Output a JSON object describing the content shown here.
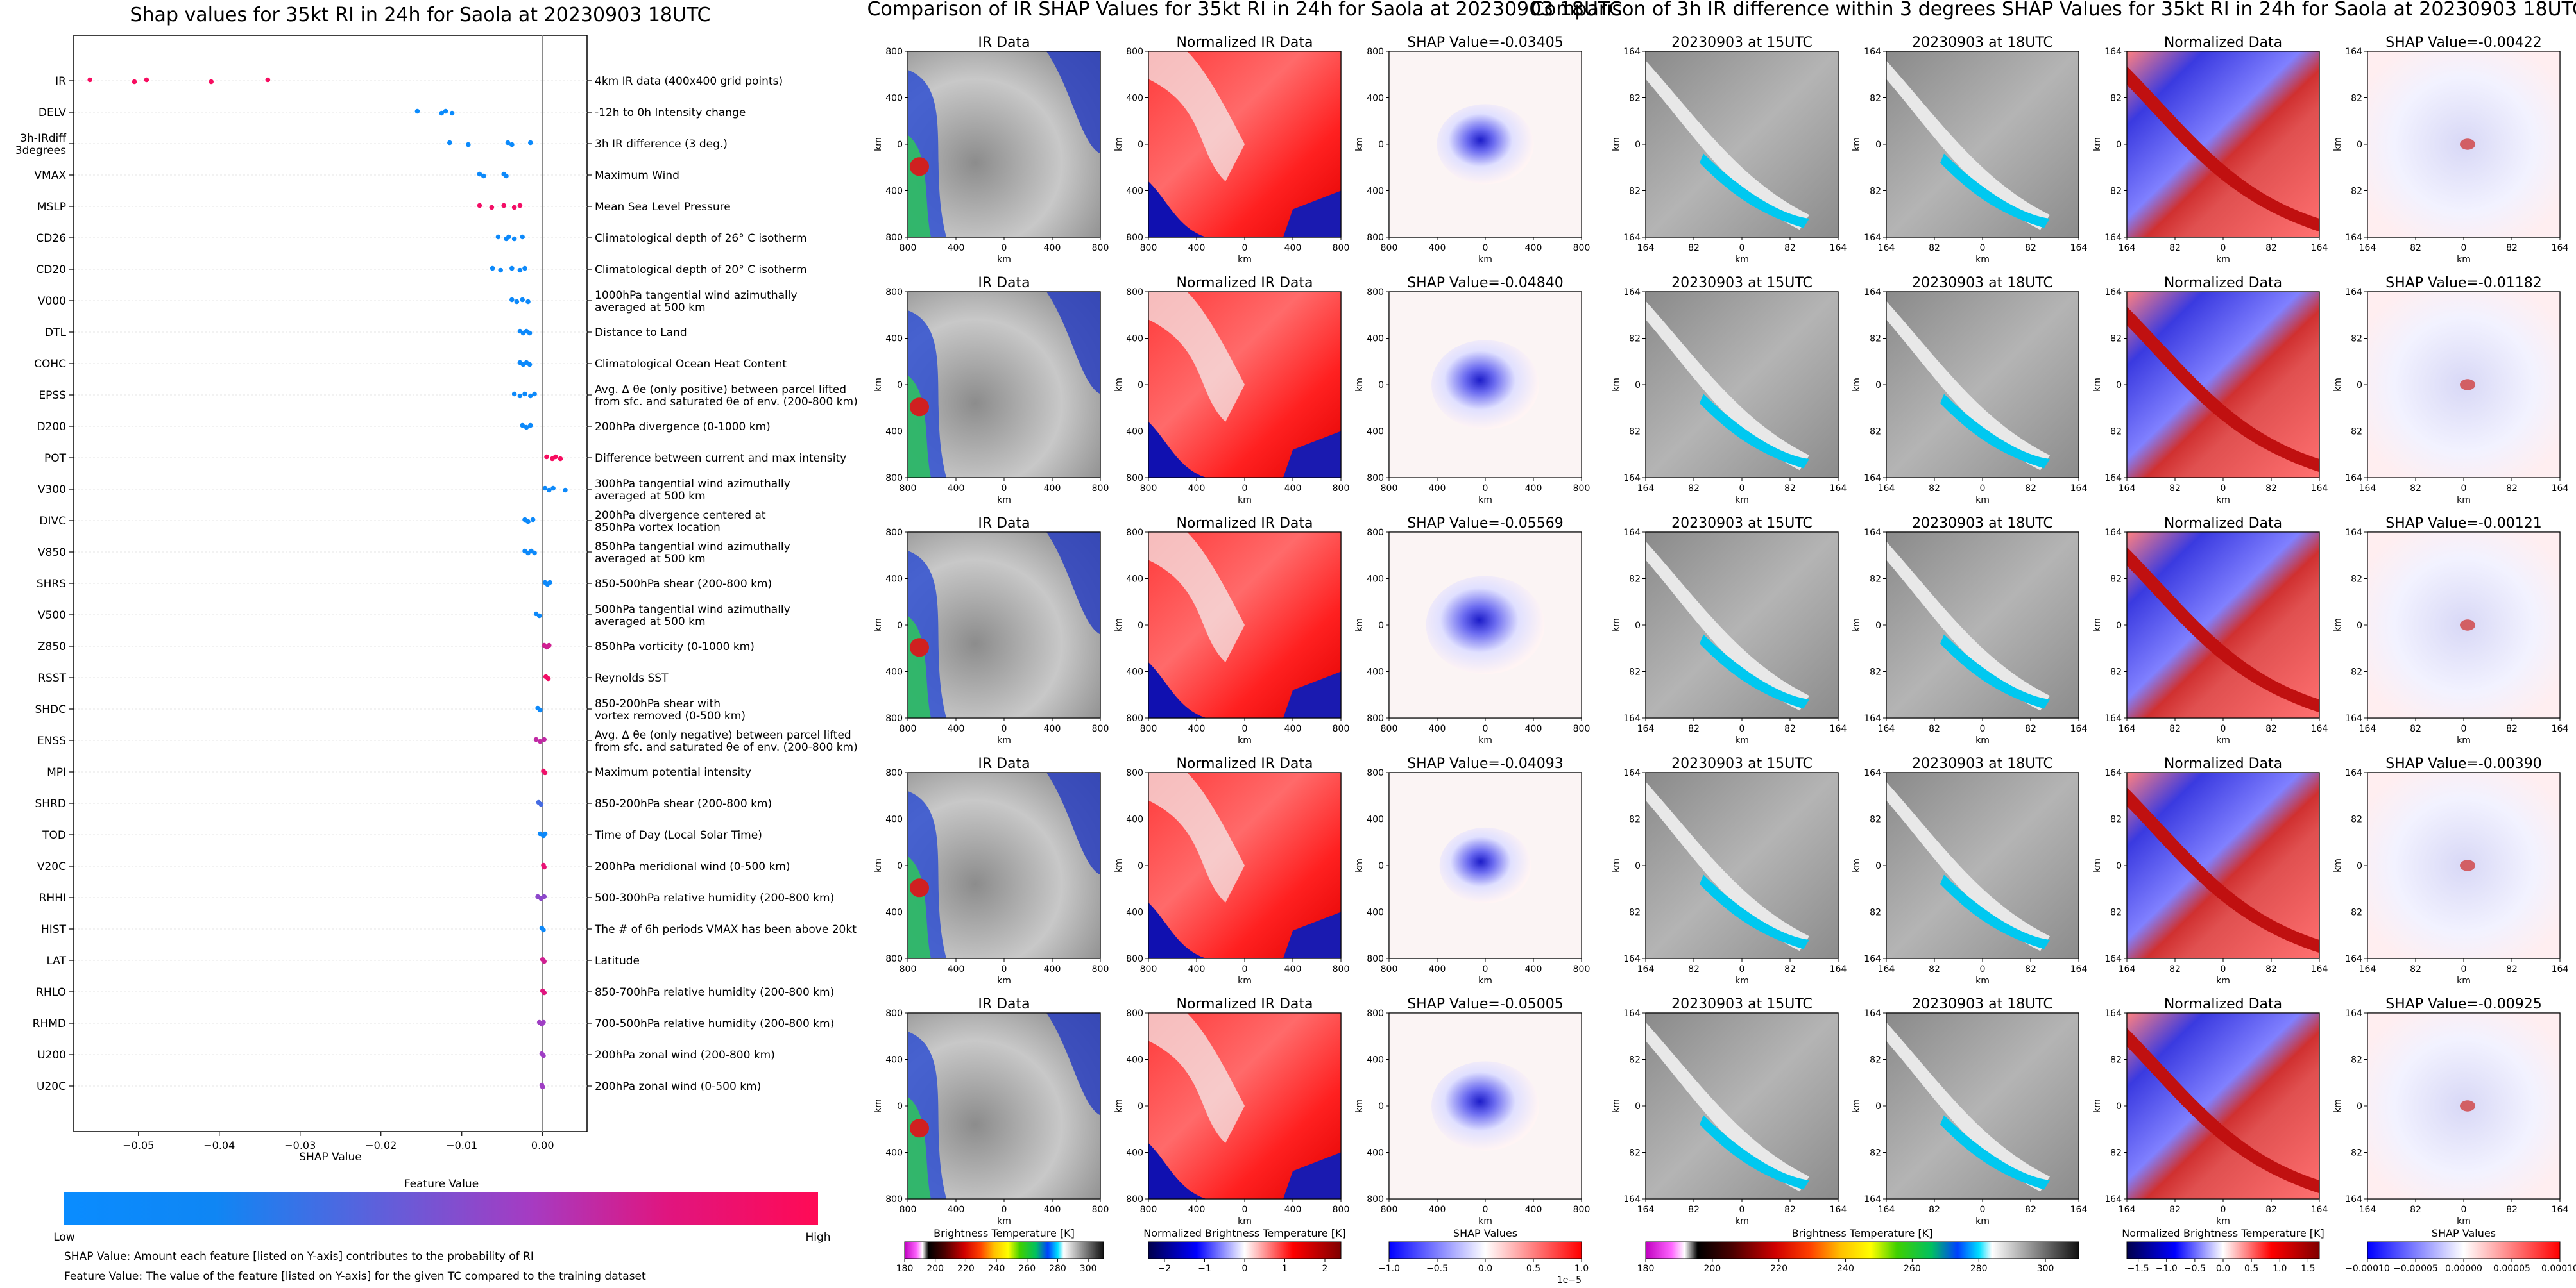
{
  "left_panel": {
    "title": "Shap values for 35kt RI in 24h for Saola at 20230903 18UTC",
    "xlabel": "SHAP Value",
    "colorbar_title": "Feature Value",
    "colorbar_low": "Low",
    "colorbar_high": "High",
    "note1": "SHAP Value: Amount each feature [listed on Y-axis] contributes to the probability of RI",
    "note2": "Feature Value: The value of the feature [listed on Y-axis] for the given TC compared to the training dataset",
    "colors": {
      "low": "#1e88e5",
      "high": "#ff0d57"
    }
  },
  "chart_data": [
    {
      "type": "scatter",
      "title": "Shap values for 35kt RI in 24h for Saola at 20230903 18UTC",
      "xlabel": "SHAP Value",
      "xlim": [
        -0.058,
        0.0055
      ],
      "xticks": [
        "−0.05",
        "−0.04",
        "−0.03",
        "−0.02",
        "−0.01",
        "0.00"
      ],
      "xtick_values": [
        -0.05,
        -0.04,
        -0.03,
        -0.02,
        -0.01,
        0.0
      ],
      "features": [
        {
          "name": "IR",
          "desc": "4km IR data (400x400 grid points)",
          "values": [
            -0.056,
            -0.0505,
            -0.049,
            -0.041,
            -0.034
          ],
          "fv": 0.95
        },
        {
          "name": "DELV",
          "desc": "-12h to 0h Intensity change",
          "values": [
            -0.0155,
            -0.0125,
            -0.012,
            -0.0112
          ],
          "fv": 0.05
        },
        {
          "name": "3h-IRdiff\n3degrees",
          "desc": "3h IR difference (3 deg.)",
          "values": [
            -0.0115,
            -0.0092,
            -0.0043,
            -0.0038,
            -0.0015
          ],
          "fv": 0.08
        },
        {
          "name": "VMAX",
          "desc": "Maximum Wind",
          "values": [
            -0.0078,
            -0.0073,
            -0.0048,
            -0.0045
          ],
          "fv": 0.1
        },
        {
          "name": "MSLP",
          "desc": "Mean Sea Level Pressure",
          "values": [
            -0.0078,
            -0.0063,
            -0.0048,
            -0.0035,
            -0.0028
          ],
          "fv": 0.92
        },
        {
          "name": "CD26",
          "desc": "Climatological depth of 26° C isotherm",
          "values": [
            -0.0055,
            -0.0045,
            -0.0042,
            -0.0035,
            -0.0025
          ],
          "fv": 0.1
        },
        {
          "name": "CD20",
          "desc": "Climatological depth of 20° C isotherm",
          "values": [
            -0.0062,
            -0.0052,
            -0.0038,
            -0.0028,
            -0.0022
          ],
          "fv": 0.1
        },
        {
          "name": "V000",
          "desc": "1000hPa tangential wind azimuthally\naveraged at 500 km",
          "values": [
            -0.0038,
            -0.0032,
            -0.0025,
            -0.0018
          ],
          "fv": 0.1
        },
        {
          "name": "DTL",
          "desc": "Distance to Land",
          "values": [
            -0.0028,
            -0.0024,
            -0.002,
            -0.0016
          ],
          "fv": 0.1
        },
        {
          "name": "COHC",
          "desc": "Climatological Ocean Heat Content",
          "values": [
            -0.0028,
            -0.0024,
            -0.002,
            -0.0016
          ],
          "fv": 0.1
        },
        {
          "name": "EPSS",
          "desc": "Avg. Δ θe (only positive) between parcel lifted\nfrom sfc. and saturated θe of env. (200-800 km)",
          "values": [
            -0.0035,
            -0.0028,
            -0.0022,
            -0.0015,
            -0.001
          ],
          "fv": 0.1
        },
        {
          "name": "D200",
          "desc": "200hPa divergence (0-1000 km)",
          "values": [
            -0.0025,
            -0.002,
            -0.0015
          ],
          "fv": 0.1
        },
        {
          "name": "POT",
          "desc": "Difference between current and max intensity",
          "values": [
            0.0005,
            0.0012,
            0.0016,
            0.0022
          ],
          "fv": 0.95
        },
        {
          "name": "V300",
          "desc": "300hPa tangential wind azimuthally\naveraged at 500 km",
          "values": [
            0.0003,
            0.0008,
            0.0013,
            0.0028
          ],
          "fv": 0.1
        },
        {
          "name": "DIVC",
          "desc": "200hPa divergence centered at\n850hPa vortex location",
          "values": [
            -0.0022,
            -0.0018,
            -0.0012
          ],
          "fv": 0.1
        },
        {
          "name": "V850",
          "desc": "850hPa tangential wind azimuthally\naveraged at 500 km",
          "values": [
            -0.0022,
            -0.0018,
            -0.0014,
            -0.001
          ],
          "fv": 0.1
        },
        {
          "name": "SHRS",
          "desc": "850-500hPa shear (200-800 km)",
          "values": [
            0.0003,
            0.0006,
            0.0009
          ],
          "fv": 0.1
        },
        {
          "name": "V500",
          "desc": "500hPa tangential wind azimuthally\naveraged at 500 km",
          "values": [
            -0.0008,
            -0.0004
          ],
          "fv": 0.1
        },
        {
          "name": "Z850",
          "desc": "850hPa vorticity (0-1000 km)",
          "values": [
            0.0002,
            0.0005,
            0.0008
          ],
          "fv": 0.75
        },
        {
          "name": "RSST",
          "desc": "Reynolds SST",
          "values": [
            0.0004,
            0.0007
          ],
          "fv": 0.92
        },
        {
          "name": "SHDC",
          "desc": "850-200hPa shear with\nvortex removed (0-500 km)",
          "values": [
            -0.0006,
            -0.0003
          ],
          "fv": 0.1
        },
        {
          "name": "ENSS",
          "desc": "Avg. Δ θe (only negative) between parcel lifted\nfrom sfc. and saturated θe of env. (200-800 km)",
          "values": [
            -0.0008,
            -0.0003,
            0.0002
          ],
          "fv": 0.7
        },
        {
          "name": "MPI",
          "desc": "Maximum potential intensity",
          "values": [
            0.0001,
            0.0003
          ],
          "fv": 0.9
        },
        {
          "name": "SHRD",
          "desc": "850-200hPa shear (200-800 km)",
          "values": [
            -0.0005,
            -0.0002
          ],
          "fv": 0.35
        },
        {
          "name": "TOD",
          "desc": "Time of Day (Local Solar Time)",
          "values": [
            -0.0003,
            0.0001,
            0.0003
          ],
          "fv": 0.1
        },
        {
          "name": "V20C",
          "desc": "200hPa meridional wind (0-500 km)",
          "values": [
            0.0001,
            0.0002
          ],
          "fv": 0.85
        },
        {
          "name": "RHHI",
          "desc": "500-300hPa relative humidity (200-800 km)",
          "values": [
            -0.0006,
            -0.0002,
            0.0002
          ],
          "fv": 0.55
        },
        {
          "name": "HIST",
          "desc": "The # of 6h periods VMAX has been above 20kt",
          "values": [
            -0.0001,
            0.0001
          ],
          "fv": 0.1
        },
        {
          "name": "LAT",
          "desc": "Latitude",
          "values": [
            0.0,
            0.0002
          ],
          "fv": 0.75
        },
        {
          "name": "RHLO",
          "desc": "850-700hPa relative humidity (200-800 km)",
          "values": [
            0.0,
            0.0002
          ],
          "fv": 0.8
        },
        {
          "name": "RHMD",
          "desc": "700-500hPa relative humidity (200-800 km)",
          "values": [
            -0.0004,
            -0.0001,
            0.0001
          ],
          "fv": 0.6
        },
        {
          "name": "U200",
          "desc": "200hPa zonal wind (200-800 km)",
          "values": [
            -0.0001,
            0.0001
          ],
          "fv": 0.6
        },
        {
          "name": "U20C",
          "desc": "200hPa zonal wind (0-500 km)",
          "values": [
            -0.0001,
            0.0
          ],
          "fv": 0.6
        }
      ]
    },
    {
      "type": "heatmap",
      "title": "Comparison of IR SHAP Values for 35kt RI in 24h for Saola at 20230903 18UTC",
      "panel_titles": [
        "IR Data",
        "Normalized IR Data"
      ],
      "shap_titles": [
        "SHAP Value=-0.03405",
        "SHAP Value=-0.04840",
        "SHAP Value=-0.05569",
        "SHAP Value=-0.04093",
        "SHAP Value=-0.05005"
      ],
      "ticks": [
        "800",
        "400",
        "0",
        "400",
        "800"
      ],
      "axis_label": "km",
      "colorbars": [
        {
          "label": "Brightness Temperature [K]",
          "ticks": [
            "180",
            "200",
            "220",
            "240",
            "260",
            "280",
            "300"
          ],
          "range": [
            180,
            310
          ]
        },
        {
          "label": "Normalized Brightness Temperature [K]",
          "ticks": [
            "−2",
            "−1",
            "0",
            "1",
            "2"
          ],
          "range": [
            -2.4,
            2.4
          ]
        },
        {
          "label": "SHAP Values",
          "ticks": [
            "−1.0",
            "−0.5",
            "0.0",
            "0.5",
            "1.0"
          ],
          "range": [
            -1.0,
            1.0
          ],
          "exponent": "1e−5"
        }
      ]
    },
    {
      "type": "heatmap",
      "title": "Comparison of 3h IR difference within 3 degrees SHAP Values for 35kt RI in 24h for Saola at 20230903 18UTC",
      "panel_titles": [
        "20230903 at 15UTC",
        "20230903 at 18UTC",
        "Normalized Data"
      ],
      "shap_titles": [
        "SHAP Value=-0.00422",
        "SHAP Value=-0.01182",
        "SHAP Value=-0.00121",
        "SHAP Value=-0.00390",
        "SHAP Value=-0.00925"
      ],
      "ticks": [
        "164",
        "82",
        "0",
        "82",
        "164"
      ],
      "axis_label": "km",
      "colorbars": [
        {
          "label": "Brightness Temperature [K]",
          "ticks": [
            "180",
            "200",
            "220",
            "240",
            "260",
            "280",
            "300"
          ],
          "range": [
            180,
            310
          ]
        },
        {
          "label": "Normalized Brightness Temperature [K]",
          "ticks": [
            "−1.5",
            "−1.0",
            "−0.5",
            "0.0",
            "0.5",
            "1.0",
            "1.5"
          ],
          "range": [
            -1.7,
            1.7
          ]
        },
        {
          "label": "SHAP Values",
          "ticks": [
            "−0.00010",
            "−0.00005",
            "0.00000",
            "0.00005",
            "0.00010"
          ],
          "range": [
            -0.0001,
            0.0001
          ]
        }
      ]
    }
  ]
}
